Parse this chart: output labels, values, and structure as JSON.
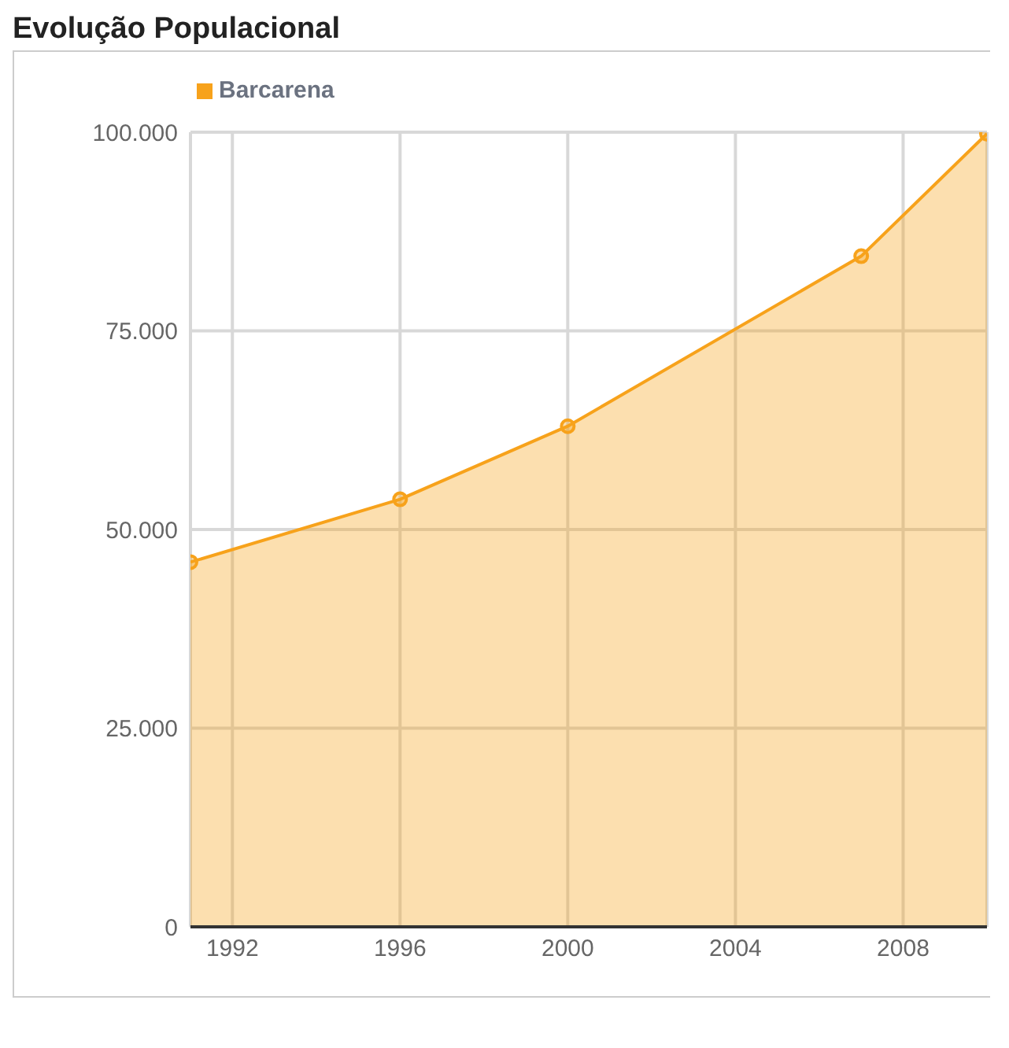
{
  "chart_data": {
    "type": "area",
    "title": "Evolução Populacional",
    "x": [
      1991,
      1996,
      2000,
      2007,
      2010
    ],
    "series": [
      {
        "name": "Barcarena",
        "color": "#f7a21b",
        "values": [
          45900,
          53800,
          63000,
          84400,
          99800
        ]
      }
    ],
    "xlim": [
      1991,
      2010
    ],
    "xticks": [
      1992,
      1996,
      2000,
      2004,
      2008
    ],
    "ylim": [
      0,
      100000
    ],
    "yticks": [
      0,
      {
        "value": 25000,
        "label": "25.000"
      },
      {
        "value": 50000,
        "label": "50.000"
      },
      {
        "value": 75000,
        "label": "75.000"
      },
      {
        "value": 100000,
        "label": "100.000"
      }
    ],
    "grid": true,
    "legend": "top left",
    "marker": "circle"
  }
}
